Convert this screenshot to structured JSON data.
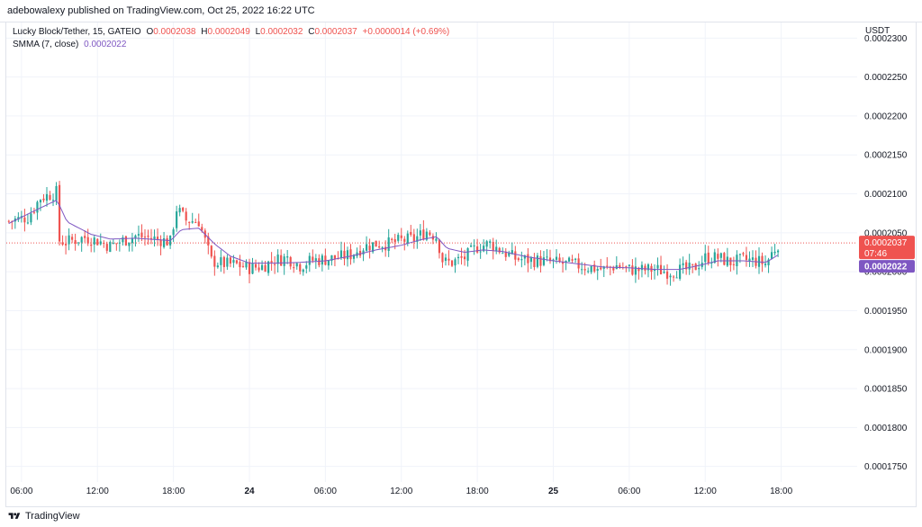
{
  "header": {
    "published": "adebowalexy published on TradingView.com, Oct 25, 2022 16:22 UTC"
  },
  "legend": {
    "symbol": "Lucky Block/Tether, 15, GATEIO",
    "o_label": "O",
    "o_value": "0.0002038",
    "h_label": "H",
    "h_value": "0.0002049",
    "l_label": "L",
    "l_value": "0.0002032",
    "c_label": "C",
    "c_value": "0.0002037",
    "change": "+0.0000014 (+0.69%)",
    "indicator": "SMMA (7, close)",
    "indicator_value": "0.0002022"
  },
  "footer": {
    "brand": "TradingView"
  },
  "colors": {
    "up": "#26a69a",
    "down": "#ef5350",
    "smma": "#7e57c2",
    "grid": "#f0f3fa",
    "price_line": "#ef5350"
  },
  "chart_data": {
    "type": "candlestick",
    "symbol": "Lucky Block/Tether",
    "interval": "15",
    "exchange": "GATEIO",
    "y_unit": "USDT",
    "ylim": [
      0.000173,
      0.000232
    ],
    "y_ticks": [
      "0.0002300",
      "0.0002250",
      "0.0002200",
      "0.0002150",
      "0.0002100",
      "0.0002050",
      "0.0002000",
      "0.0001950",
      "0.0001900",
      "0.0001850",
      "0.0001800",
      "0.0001750"
    ],
    "y_tick_values": [
      0.00023,
      0.000225,
      0.00022,
      0.000215,
      0.00021,
      0.000205,
      0.0002,
      0.000195,
      0.00019,
      0.000185,
      0.00018,
      0.000175
    ],
    "x_ticks": [
      {
        "label": "06:00",
        "bold": false
      },
      {
        "label": "12:00",
        "bold": false
      },
      {
        "label": "18:00",
        "bold": false
      },
      {
        "label": "24",
        "bold": true
      },
      {
        "label": "06:00",
        "bold": false
      },
      {
        "label": "12:00",
        "bold": false
      },
      {
        "label": "18:00",
        "bold": false
      },
      {
        "label": "25",
        "bold": true
      },
      {
        "label": "06:00",
        "bold": false
      },
      {
        "label": "12:00",
        "bold": false
      },
      {
        "label": "18:00",
        "bold": false
      }
    ],
    "x_tick_hours": [
      6,
      12,
      18,
      24,
      30,
      36,
      42,
      48,
      54,
      60,
      66
    ],
    "x_range_hours": [
      4.8,
      72
    ],
    "last_price": "0.0002037",
    "last_price_value": 0.0002037,
    "countdown": "07:46",
    "smma_value": "0.0002022",
    "smma_value_num": 0.0002022,
    "close_keypoints": [
      [
        5.0,
        0.0002065
      ],
      [
        6.5,
        0.000207
      ],
      [
        7.5,
        0.0002095
      ],
      [
        8.8,
        0.0002102
      ],
      [
        9.0,
        0.000204
      ],
      [
        9.5,
        0.0002038
      ],
      [
        11.0,
        0.0002044
      ],
      [
        12.0,
        0.000204
      ],
      [
        13.0,
        0.0002033
      ],
      [
        14.0,
        0.000204
      ],
      [
        15.0,
        0.0002046
      ],
      [
        16.0,
        0.0002044
      ],
      [
        17.0,
        0.0002041
      ],
      [
        17.8,
        0.0002038
      ],
      [
        18.2,
        0.0002082
      ],
      [
        19.0,
        0.0002066
      ],
      [
        20.0,
        0.0002065
      ],
      [
        21.0,
        0.0002014
      ],
      [
        22.0,
        0.000201
      ],
      [
        23.0,
        0.0002009
      ],
      [
        24.0,
        0.0002005
      ],
      [
        25.0,
        0.0002007
      ],
      [
        26.0,
        0.0002015
      ],
      [
        27.0,
        0.0002018
      ],
      [
        28.0,
        0.0002008
      ],
      [
        29.0,
        0.0002015
      ],
      [
        30.0,
        0.0002016
      ],
      [
        31.0,
        0.0002018
      ],
      [
        32.0,
        0.0002022
      ],
      [
        33.0,
        0.0002032
      ],
      [
        34.0,
        0.0002036
      ],
      [
        35.0,
        0.0002036
      ],
      [
        36.0,
        0.000204
      ],
      [
        37.0,
        0.0002042
      ],
      [
        38.0,
        0.0002052
      ],
      [
        38.8,
        0.0002045
      ],
      [
        39.3,
        0.0002012
      ],
      [
        40.0,
        0.0002012
      ],
      [
        41.0,
        0.0002018
      ],
      [
        42.0,
        0.0002032
      ],
      [
        43.0,
        0.0002036
      ],
      [
        44.0,
        0.0002026
      ],
      [
        45.0,
        0.0002017
      ],
      [
        46.0,
        0.0002015
      ],
      [
        47.0,
        0.0002014
      ],
      [
        48.0,
        0.0002012
      ],
      [
        49.0,
        0.000201
      ],
      [
        50.0,
        0.0002008
      ],
      [
        51.0,
        0.0002005
      ],
      [
        52.0,
        0.0002003
      ],
      [
        53.0,
        0.0002008
      ],
      [
        54.0,
        0.0002003
      ],
      [
        55.0,
        0.0002002
      ],
      [
        56.0,
        0.0002003
      ],
      [
        57.0,
        0.0002
      ],
      [
        58.0,
        0.0002002
      ],
      [
        59.0,
        0.0002003
      ],
      [
        60.0,
        0.0002018
      ],
      [
        61.0,
        0.0002018
      ],
      [
        62.0,
        0.0002012
      ],
      [
        63.0,
        0.0002015
      ],
      [
        64.0,
        0.0002014
      ],
      [
        64.8,
        0.000201
      ],
      [
        65.3,
        0.0002025
      ],
      [
        65.8,
        0.0002037
      ]
    ],
    "smma_keypoints": [
      [
        5.0,
        0.0002062
      ],
      [
        7.5,
        0.0002082
      ],
      [
        8.8,
        0.0002092
      ],
      [
        9.6,
        0.0002064
      ],
      [
        11.5,
        0.0002048
      ],
      [
        13.0,
        0.0002042
      ],
      [
        15.0,
        0.0002043
      ],
      [
        17.8,
        0.000204
      ],
      [
        18.6,
        0.0002054
      ],
      [
        20.0,
        0.0002056
      ],
      [
        21.3,
        0.0002035
      ],
      [
        22.5,
        0.000202
      ],
      [
        24.0,
        0.0002011
      ],
      [
        26.0,
        0.0002011
      ],
      [
        28.0,
        0.0002012
      ],
      [
        30.0,
        0.0002014
      ],
      [
        32.0,
        0.000202
      ],
      [
        34.0,
        0.0002028
      ],
      [
        36.0,
        0.0002034
      ],
      [
        37.5,
        0.0002041
      ],
      [
        38.8,
        0.0002045
      ],
      [
        39.6,
        0.000203
      ],
      [
        41.0,
        0.0002025
      ],
      [
        42.5,
        0.0002028
      ],
      [
        44.0,
        0.0002026
      ],
      [
        46.0,
        0.0002019
      ],
      [
        48.0,
        0.0002014
      ],
      [
        50.0,
        0.000201
      ],
      [
        52.0,
        0.0002006
      ],
      [
        54.0,
        0.0002005
      ],
      [
        56.0,
        0.0002003
      ],
      [
        58.0,
        0.0002003
      ],
      [
        59.5,
        0.0002008
      ],
      [
        61.0,
        0.0002014
      ],
      [
        63.0,
        0.0002014
      ],
      [
        64.8,
        0.0002012
      ],
      [
        65.8,
        0.0002022
      ]
    ]
  }
}
